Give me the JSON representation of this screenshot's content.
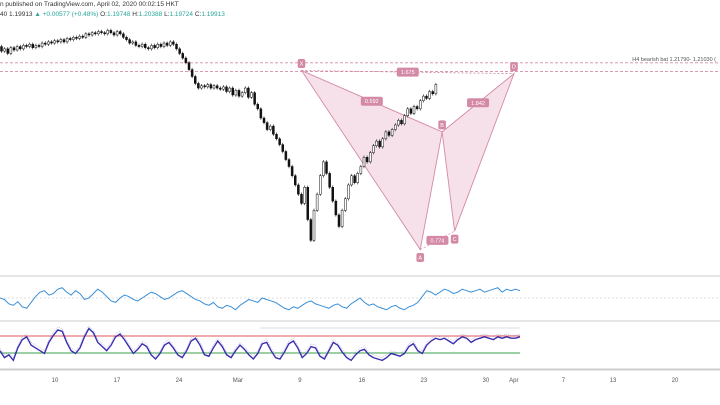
{
  "header": {
    "published": "n published on TradingView.com, April 02, 2020 00:02:15 HKT",
    "symbol_fragment": "40",
    "last": "1.19913",
    "change": "+0.00577 (+0.48%)",
    "o_label": "O:",
    "o_value": "1.19748",
    "h_label": "H:",
    "h_value": "1.20388",
    "l_label": "L:",
    "l_value": "1.19724",
    "c_label": "C:",
    "c_value": "1.19913"
  },
  "chart_data": {
    "type": "candlestick",
    "price_range": [
      1.04,
      1.255
    ],
    "candles": [
      [
        1.232,
        1.228
      ],
      [
        1.228,
        1.23
      ],
      [
        1.23,
        1.226
      ],
      [
        1.226,
        1.231
      ],
      [
        1.231,
        1.229
      ],
      [
        1.229,
        1.232
      ],
      [
        1.232,
        1.23
      ],
      [
        1.23,
        1.233
      ],
      [
        1.233,
        1.232
      ],
      [
        1.232,
        1.234
      ],
      [
        1.234,
        1.231
      ],
      [
        1.231,
        1.233
      ],
      [
        1.233,
        1.232
      ],
      [
        1.232,
        1.235
      ],
      [
        1.235,
        1.234
      ],
      [
        1.234,
        1.236
      ],
      [
        1.236,
        1.235
      ],
      [
        1.235,
        1.237
      ],
      [
        1.237,
        1.236
      ],
      [
        1.236,
        1.238
      ],
      [
        1.238,
        1.236
      ],
      [
        1.236,
        1.239
      ],
      [
        1.239,
        1.238
      ],
      [
        1.238,
        1.24
      ],
      [
        1.24,
        1.239
      ],
      [
        1.239,
        1.241
      ],
      [
        1.241,
        1.24
      ],
      [
        1.24,
        1.243
      ],
      [
        1.243,
        1.242
      ],
      [
        1.242,
        1.244
      ],
      [
        1.244,
        1.243
      ],
      [
        1.243,
        1.245
      ],
      [
        1.245,
        1.244
      ],
      [
        1.244,
        1.243
      ],
      [
        1.243,
        1.246
      ],
      [
        1.246,
        1.244
      ],
      [
        1.244,
        1.242
      ],
      [
        1.242,
        1.245
      ],
      [
        1.245,
        1.243
      ],
      [
        1.243,
        1.24
      ],
      [
        1.24,
        1.238
      ],
      [
        1.238,
        1.235
      ],
      [
        1.235,
        1.236
      ],
      [
        1.236,
        1.233
      ],
      [
        1.233,
        1.232
      ],
      [
        1.232,
        1.234
      ],
      [
        1.234,
        1.231
      ],
      [
        1.231,
        1.23
      ],
      [
        1.23,
        1.233
      ],
      [
        1.233,
        1.231
      ],
      [
        1.231,
        1.234
      ],
      [
        1.234,
        1.232
      ],
      [
        1.232,
        1.235
      ],
      [
        1.235,
        1.233
      ],
      [
        1.233,
        1.236
      ],
      [
        1.236,
        1.234
      ],
      [
        1.234,
        1.23
      ],
      [
        1.23,
        1.226
      ],
      [
        1.226,
        1.222
      ],
      [
        1.222,
        1.218
      ],
      [
        1.218,
        1.212
      ],
      [
        1.212,
        1.206
      ],
      [
        1.206,
        1.2
      ],
      [
        1.2,
        1.196
      ],
      [
        1.196,
        1.198
      ],
      [
        1.198,
        1.197
      ],
      [
        1.197,
        1.199
      ],
      [
        1.199,
        1.196
      ],
      [
        1.196,
        1.198
      ],
      [
        1.198,
        1.196
      ],
      [
        1.196,
        1.195
      ],
      [
        1.195,
        1.197
      ],
      [
        1.197,
        1.193
      ],
      [
        1.193,
        1.196
      ],
      [
        1.196,
        1.19
      ],
      [
        1.19,
        1.194
      ],
      [
        1.194,
        1.189
      ],
      [
        1.189,
        1.192
      ],
      [
        1.192,
        1.196
      ],
      [
        1.196,
        1.188
      ],
      [
        1.188,
        1.192
      ],
      [
        1.192,
        1.182
      ],
      [
        1.182,
        1.178
      ],
      [
        1.178,
        1.17
      ],
      [
        1.17,
        1.166
      ],
      [
        1.166,
        1.16
      ],
      [
        1.16,
        1.163
      ],
      [
        1.163,
        1.156
      ],
      [
        1.156,
        1.152
      ],
      [
        1.152,
        1.147
      ],
      [
        1.147,
        1.141
      ],
      [
        1.141,
        1.134
      ],
      [
        1.134,
        1.128
      ],
      [
        1.128,
        1.12
      ],
      [
        1.12,
        1.112
      ],
      [
        1.112,
        1.104
      ],
      [
        1.104,
        1.096
      ],
      [
        1.096,
        1.11
      ],
      [
        1.11,
        1.082
      ],
      [
        1.082,
        1.064
      ],
      [
        1.064,
        1.09
      ],
      [
        1.09,
        1.104
      ],
      [
        1.104,
        1.12
      ],
      [
        1.12,
        1.132
      ],
      [
        1.132,
        1.122
      ],
      [
        1.122,
        1.11
      ],
      [
        1.11,
        1.098
      ],
      [
        1.098,
        1.086
      ],
      [
        1.086,
        1.076
      ],
      [
        1.076,
        1.09
      ],
      [
        1.09,
        1.1
      ],
      [
        1.1,
        1.112
      ],
      [
        1.112,
        1.12
      ],
      [
        1.12,
        1.114
      ],
      [
        1.114,
        1.122
      ],
      [
        1.122,
        1.128
      ],
      [
        1.128,
        1.136
      ],
      [
        1.136,
        1.132
      ],
      [
        1.132,
        1.14
      ],
      [
        1.14,
        1.146
      ],
      [
        1.146,
        1.15
      ],
      [
        1.15,
        1.145
      ],
      [
        1.145,
        1.152
      ],
      [
        1.152,
        1.158
      ],
      [
        1.158,
        1.155
      ],
      [
        1.155,
        1.16
      ],
      [
        1.16,
        1.164
      ],
      [
        1.164,
        1.168
      ],
      [
        1.168,
        1.165
      ],
      [
        1.165,
        1.172
      ],
      [
        1.172,
        1.178
      ],
      [
        1.178,
        1.174
      ],
      [
        1.174,
        1.18
      ],
      [
        1.18,
        1.178
      ],
      [
        1.178,
        1.185
      ],
      [
        1.185,
        1.189
      ],
      [
        1.189,
        1.187
      ],
      [
        1.187,
        1.193
      ],
      [
        1.193,
        1.191
      ],
      [
        1.191,
        1.199
      ]
    ],
    "price_lines": [
      1.2179,
      1.2103
    ],
    "price_line_label": "H4 bearish bat 1.21790- 1.21030 (",
    "harmonic_points": [
      {
        "label": "X",
        "i": 96,
        "price": 1.2112
      },
      {
        "label": "A",
        "i": 134,
        "price": 1.056
      },
      {
        "label": "B",
        "i": 141,
        "price": 1.158
      },
      {
        "label": "C",
        "i": 145,
        "price": 1.072
      },
      {
        "label": "D",
        "i": 164,
        "price": 1.2085
      }
    ],
    "ratio_labels": [
      {
        "text": "0.592",
        "between": [
          "X",
          "B"
        ]
      },
      {
        "text": "1.675",
        "between": [
          "X",
          "D"
        ]
      },
      {
        "text": "0.774",
        "between": [
          "A",
          "C"
        ]
      },
      {
        "text": "1.842",
        "between": [
          "B",
          "D"
        ]
      }
    ],
    "x_tick_labels": [
      {
        "text": "10",
        "i": 14
      },
      {
        "text": "17",
        "i": 34
      },
      {
        "text": "24",
        "i": 54
      },
      {
        "text": "Mar",
        "i": 73
      },
      {
        "text": "9",
        "i": 93
      },
      {
        "text": "16",
        "i": 113
      },
      {
        "text": "23",
        "i": 133
      },
      {
        "text": "30",
        "i": 153
      },
      {
        "text": "Apr",
        "i": 162
      },
      {
        "text": "7",
        "i": 178
      },
      {
        "text": "13",
        "i": 194
      },
      {
        "text": "20",
        "i": 214
      }
    ],
    "osc1": [
      50,
      48,
      42,
      40,
      45,
      38,
      36,
      44,
      52,
      58,
      60,
      54,
      56,
      62,
      64,
      58,
      54,
      60,
      56,
      48,
      50,
      56,
      62,
      58,
      52,
      46,
      44,
      50,
      54,
      52,
      48,
      46,
      50,
      54,
      58,
      56,
      52,
      48,
      50,
      54,
      58,
      60,
      56,
      52,
      48,
      46,
      42,
      40,
      44,
      38,
      36,
      40,
      38,
      34,
      40,
      44,
      48,
      46,
      44,
      50,
      48,
      46,
      44,
      40,
      36,
      34,
      38,
      36,
      40,
      44,
      46,
      42,
      40,
      38,
      36,
      40,
      42,
      38,
      36,
      42,
      46,
      50,
      44,
      40,
      42,
      38,
      36,
      34,
      38,
      40,
      36,
      34,
      38,
      40,
      44,
      52,
      60,
      58,
      54,
      58,
      62,
      60,
      56,
      58,
      62,
      60,
      58,
      60,
      62,
      58,
      60,
      62,
      64,
      58,
      62,
      60,
      62,
      60
    ],
    "osc2": [
      40,
      30,
      34,
      26,
      44,
      56,
      60,
      48,
      44,
      40,
      36,
      52,
      62,
      70,
      68,
      52,
      40,
      36,
      44,
      60,
      72,
      66,
      52,
      46,
      40,
      48,
      60,
      64,
      56,
      46,
      36,
      42,
      50,
      46,
      34,
      28,
      36,
      48,
      52,
      44,
      34,
      30,
      40,
      54,
      58,
      48,
      34,
      32,
      44,
      54,
      46,
      34,
      30,
      40,
      48,
      42,
      34,
      28,
      36,
      50,
      52,
      40,
      30,
      28,
      38,
      50,
      54,
      44,
      30,
      36,
      46,
      44,
      32,
      28,
      40,
      52,
      48,
      38,
      30,
      26,
      34,
      40,
      42,
      34,
      30,
      28,
      26,
      30,
      36,
      34,
      32,
      36,
      46,
      50,
      40,
      36,
      48,
      54,
      58,
      56,
      58,
      54,
      50,
      56,
      60,
      58,
      52,
      56,
      58,
      60,
      58,
      56,
      60,
      58,
      60,
      58,
      58,
      60
    ]
  }
}
